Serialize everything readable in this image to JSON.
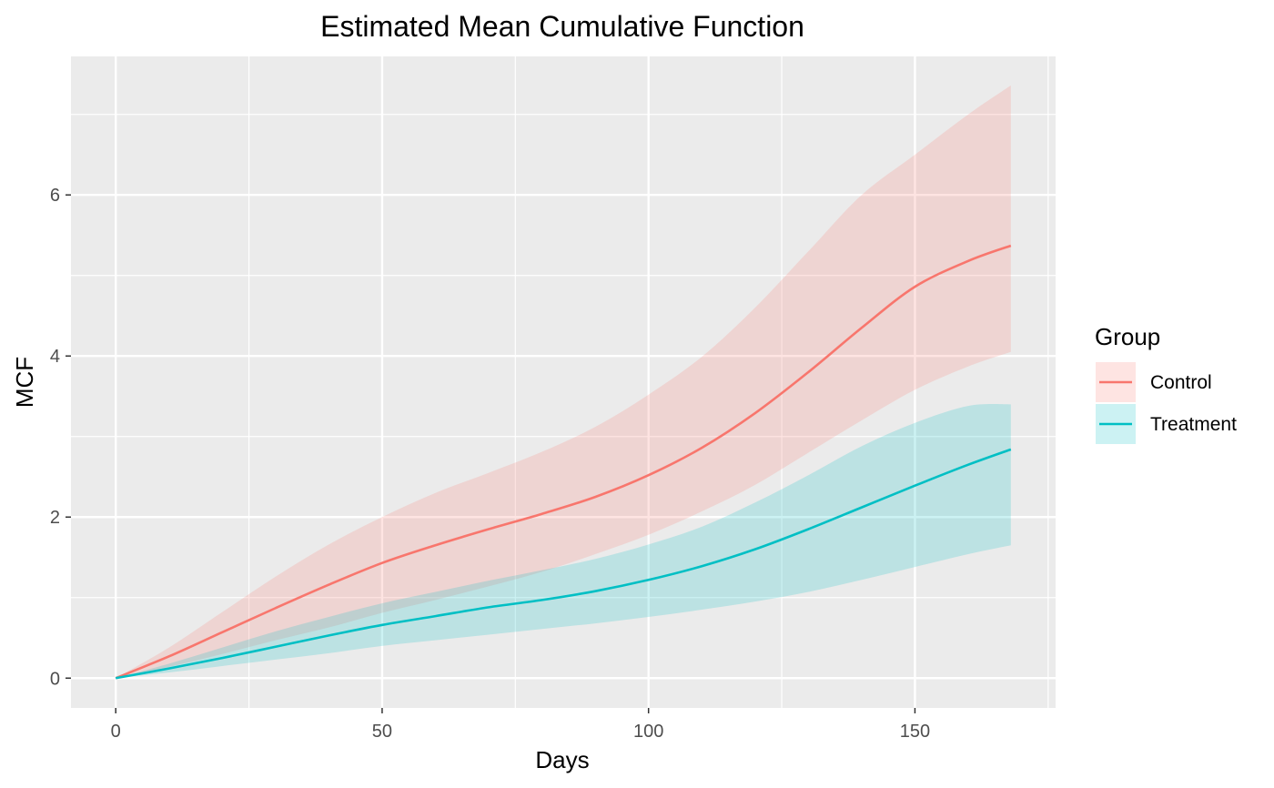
{
  "chart_data": {
    "type": "line",
    "title": "Estimated Mean Cumulative Function",
    "xlabel": "Days",
    "ylabel": "MCF",
    "xlim": [
      -8.4,
      176.4
    ],
    "ylim": [
      -0.37,
      7.72
    ],
    "x_ticks": [
      0,
      50,
      100,
      150
    ],
    "x_tick_labels": [
      "0",
      "50",
      "100",
      "150"
    ],
    "y_ticks": [
      0,
      2,
      4,
      6
    ],
    "y_tick_labels": [
      "0",
      "2",
      "4",
      "6"
    ],
    "grid": true,
    "legend": {
      "title": "Group",
      "position": "right",
      "entries": [
        "Control",
        "Treatment"
      ]
    },
    "x": [
      0,
      10,
      20,
      30,
      40,
      50,
      60,
      70,
      80,
      90,
      100,
      110,
      120,
      130,
      140,
      150,
      160,
      168
    ],
    "series": [
      {
        "name": "Control",
        "color": "#F8766D",
        "values": [
          0,
          0.27,
          0.57,
          0.87,
          1.16,
          1.43,
          1.65,
          1.85,
          2.04,
          2.25,
          2.52,
          2.86,
          3.29,
          3.8,
          4.35,
          4.86,
          5.18,
          5.37
        ],
        "lower": [
          0,
          0.14,
          0.3,
          0.47,
          0.63,
          0.81,
          0.97,
          1.14,
          1.32,
          1.54,
          1.78,
          2.07,
          2.4,
          2.8,
          3.2,
          3.58,
          3.87,
          4.05
        ],
        "upper": [
          0,
          0.38,
          0.82,
          1.26,
          1.66,
          2.0,
          2.3,
          2.55,
          2.81,
          3.12,
          3.52,
          3.99,
          4.6,
          5.3,
          6.0,
          6.5,
          7.0,
          7.36
        ]
      },
      {
        "name": "Treatment",
        "color": "#00BFC4",
        "values": [
          0,
          0.12,
          0.25,
          0.39,
          0.53,
          0.66,
          0.77,
          0.88,
          0.97,
          1.08,
          1.22,
          1.39,
          1.6,
          1.85,
          2.12,
          2.39,
          2.65,
          2.84
        ],
        "lower": [
          0,
          0.07,
          0.15,
          0.23,
          0.31,
          0.4,
          0.47,
          0.54,
          0.61,
          0.68,
          0.76,
          0.85,
          0.95,
          1.07,
          1.22,
          1.38,
          1.54,
          1.65
        ],
        "upper": [
          0,
          0.18,
          0.38,
          0.58,
          0.76,
          0.93,
          1.07,
          1.21,
          1.34,
          1.48,
          1.66,
          1.88,
          2.18,
          2.52,
          2.88,
          3.17,
          3.38,
          3.4
        ]
      }
    ]
  }
}
